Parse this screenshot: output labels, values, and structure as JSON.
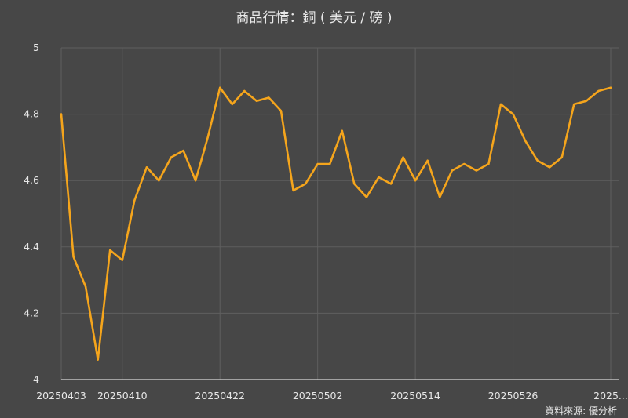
{
  "chart_data": {
    "type": "line",
    "title": "商品行情：銅 ( 美元 / 磅 )",
    "source": "資料來源: 優分析",
    "xlabel": "",
    "ylabel": "",
    "ylim": [
      4,
      5
    ],
    "yticks": [
      "4",
      "4.2",
      "4.4",
      "4.6",
      "4.8",
      "5"
    ],
    "xtick_labels": [
      "20250403",
      "20250410",
      "20250422",
      "20250502",
      "20250514",
      "20250526",
      "2025..."
    ],
    "xtick_indices": [
      0,
      5,
      13,
      21,
      29,
      37,
      45
    ],
    "grid": true,
    "legend": "none",
    "line_color": "#f5a51c",
    "values": [
      4.8,
      4.37,
      4.28,
      4.06,
      4.39,
      4.36,
      4.54,
      4.64,
      4.6,
      4.67,
      4.69,
      4.6,
      4.73,
      4.88,
      4.83,
      4.87,
      4.84,
      4.85,
      4.81,
      4.57,
      4.59,
      4.65,
      4.65,
      4.75,
      4.59,
      4.55,
      4.61,
      4.59,
      4.67,
      4.6,
      4.66,
      4.55,
      4.63,
      4.65,
      4.63,
      4.65,
      4.83,
      4.8,
      4.72,
      4.66,
      4.64,
      4.67,
      4.83,
      4.84,
      4.87,
      4.88
    ]
  }
}
